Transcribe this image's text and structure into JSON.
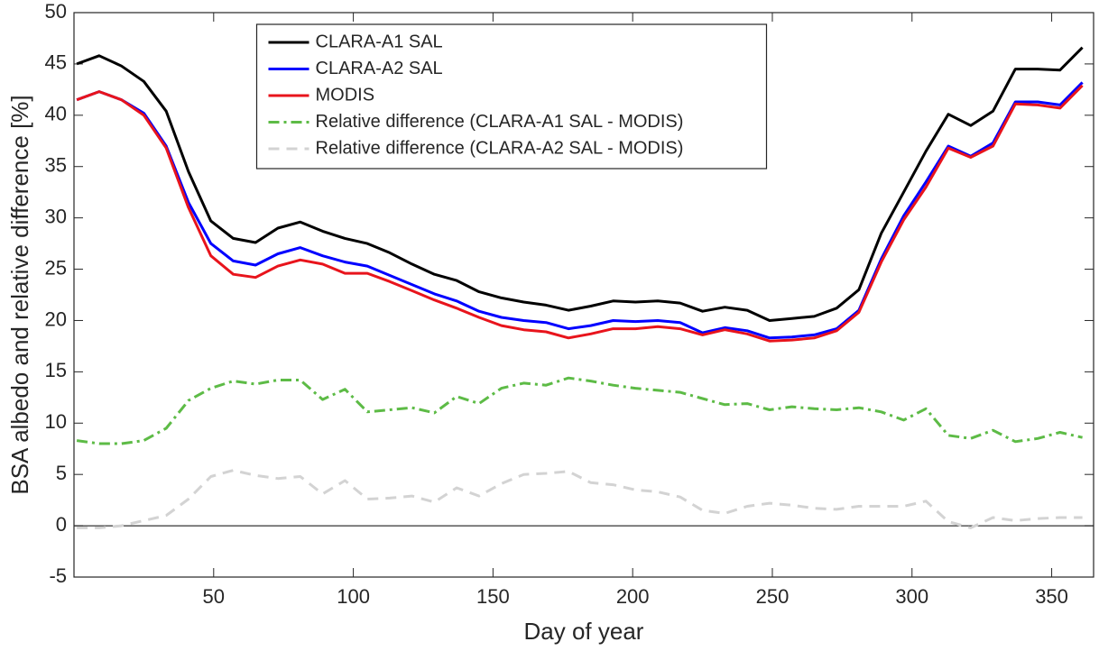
{
  "chart_data": {
    "type": "line",
    "xlabel": "Day of year",
    "ylabel": "BSA albedo and relative difference [%]",
    "xlim": [
      0,
      365
    ],
    "ylim": [
      -5,
      50
    ],
    "xticks": [
      50,
      100,
      150,
      200,
      250,
      300,
      350
    ],
    "yticks": [
      -5,
      0,
      5,
      10,
      15,
      20,
      25,
      30,
      35,
      40,
      45,
      50
    ],
    "hline": 0,
    "legend": "top",
    "x": [
      1,
      9,
      17,
      25,
      33,
      41,
      49,
      57,
      65,
      73,
      81,
      89,
      97,
      105,
      113,
      121,
      129,
      137,
      145,
      153,
      161,
      169,
      177,
      185,
      193,
      201,
      209,
      217,
      225,
      233,
      241,
      249,
      257,
      265,
      273,
      281,
      289,
      297,
      305,
      313,
      321,
      329,
      337,
      345,
      353,
      361
    ],
    "series": [
      {
        "name": "CLARA-A1 SAL",
        "color": "#000000",
        "style": "solid",
        "values": [
          45.0,
          45.8,
          44.8,
          43.3,
          40.4,
          34.5,
          29.7,
          28.0,
          27.6,
          29.0,
          29.6,
          28.7,
          28.0,
          27.5,
          26.6,
          25.5,
          24.5,
          23.9,
          22.8,
          22.2,
          21.8,
          21.5,
          21.0,
          21.4,
          21.9,
          21.8,
          21.9,
          21.7,
          20.9,
          21.3,
          21.0,
          20.0,
          20.2,
          20.4,
          21.2,
          23.0,
          28.5,
          32.5,
          36.5,
          40.1,
          39.0,
          40.4,
          44.5,
          44.5,
          44.4,
          46.6
        ]
      },
      {
        "name": "CLARA-A2 SAL",
        "color": "#0000ff",
        "style": "solid",
        "values": [
          41.5,
          42.3,
          41.5,
          40.2,
          37.0,
          31.5,
          27.5,
          25.8,
          25.4,
          26.5,
          27.1,
          26.3,
          25.7,
          25.3,
          24.4,
          23.5,
          22.6,
          21.9,
          20.9,
          20.3,
          20.0,
          19.8,
          19.2,
          19.5,
          20.0,
          19.9,
          20.0,
          19.8,
          18.8,
          19.3,
          19.0,
          18.3,
          18.4,
          18.6,
          19.2,
          21.0,
          26.0,
          30.2,
          33.5,
          37.0,
          36.0,
          37.3,
          41.3,
          41.3,
          41.0,
          43.2
        ]
      },
      {
        "name": "MODIS",
        "color": "#e8141c",
        "style": "solid",
        "values": [
          41.5,
          42.3,
          41.5,
          40.0,
          36.8,
          31.0,
          26.3,
          24.5,
          24.2,
          25.3,
          25.9,
          25.5,
          24.6,
          24.6,
          23.8,
          22.9,
          22.0,
          21.2,
          20.3,
          19.5,
          19.1,
          18.9,
          18.3,
          18.7,
          19.2,
          19.2,
          19.4,
          19.2,
          18.6,
          19.1,
          18.7,
          18.0,
          18.1,
          18.3,
          19.0,
          20.8,
          25.7,
          29.8,
          33.0,
          36.8,
          35.9,
          37.0,
          41.1,
          41.0,
          40.7,
          42.9
        ]
      },
      {
        "name": "Relative difference (CLARA-A1 SAL - MODIS)",
        "color": "#5dbb46",
        "style": "dash-dot",
        "values": [
          8.3,
          8.0,
          8.0,
          8.3,
          9.5,
          12.2,
          13.4,
          14.1,
          13.8,
          14.2,
          14.2,
          12.3,
          13.3,
          11.1,
          11.3,
          11.5,
          11.0,
          12.6,
          11.9,
          13.4,
          13.9,
          13.7,
          14.4,
          14.1,
          13.7,
          13.4,
          13.2,
          13.0,
          12.4,
          11.8,
          11.9,
          11.3,
          11.6,
          11.4,
          11.3,
          11.5,
          11.1,
          10.3,
          11.4,
          8.8,
          8.5,
          9.3,
          8.2,
          8.5,
          9.1,
          8.6
        ]
      },
      {
        "name": "Relative difference (CLARA-A2 SAL - MODIS)",
        "color": "#d3d3d3",
        "style": "dash",
        "values": [
          -0.2,
          -0.2,
          0.0,
          0.5,
          1.0,
          2.6,
          4.8,
          5.4,
          4.9,
          4.6,
          4.8,
          3.1,
          4.4,
          2.6,
          2.7,
          2.9,
          2.3,
          3.7,
          2.9,
          4.1,
          5.0,
          5.1,
          5.3,
          4.2,
          4.0,
          3.5,
          3.3,
          2.8,
          1.5,
          1.2,
          1.9,
          2.2,
          2.0,
          1.7,
          1.6,
          1.9,
          1.9,
          1.9,
          2.4,
          0.4,
          -0.2,
          0.8,
          0.5,
          0.7,
          0.8,
          0.8
        ]
      }
    ]
  }
}
